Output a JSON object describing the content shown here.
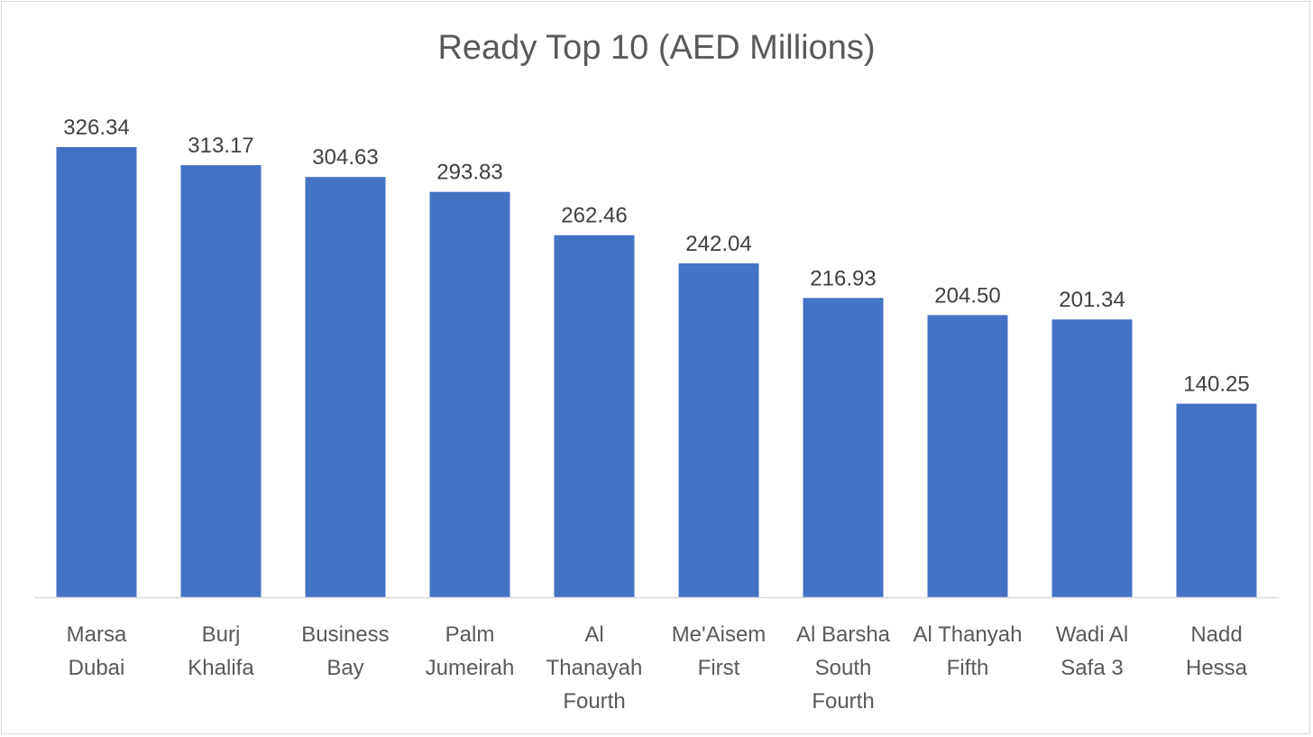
{
  "chart_data": {
    "type": "bar",
    "title": "Ready Top 10 (AED Millions)",
    "categories": [
      "Marsa Dubai",
      "Burj Khalifa",
      "Business Bay",
      "Palm Jumeirah",
      "Al Thanayah Fourth",
      "Me'Aisem First",
      "Al Barsha South Fourth",
      "Al Thanyah Fifth",
      "Wadi Al Safa 3",
      "Nadd Hessa"
    ],
    "category_lines": [
      [
        "Marsa",
        "Dubai"
      ],
      [
        "Burj",
        "Khalifa"
      ],
      [
        "Business",
        "Bay"
      ],
      [
        "Palm",
        "Jumeirah"
      ],
      [
        "Al",
        "Thanayah",
        "Fourth"
      ],
      [
        "Me'Aisem",
        "First"
      ],
      [
        "Al Barsha",
        "South",
        "Fourth"
      ],
      [
        "Al Thanyah",
        "Fifth"
      ],
      [
        "Wadi Al",
        "Safa 3"
      ],
      [
        "Nadd",
        "Hessa"
      ]
    ],
    "values": [
      326.34,
      313.17,
      304.63,
      293.83,
      262.46,
      242.04,
      216.93,
      204.5,
      201.34,
      140.25
    ],
    "value_labels": [
      "326.34",
      "313.17",
      "304.63",
      "293.83",
      "262.46",
      "242.04",
      "216.93",
      "204.50",
      "201.34",
      "140.25"
    ],
    "ylim": [
      0,
      326.34
    ],
    "grid": false,
    "legend": "none",
    "bar_color": "#4472C4",
    "axis_color": "#d9d9d9"
  }
}
